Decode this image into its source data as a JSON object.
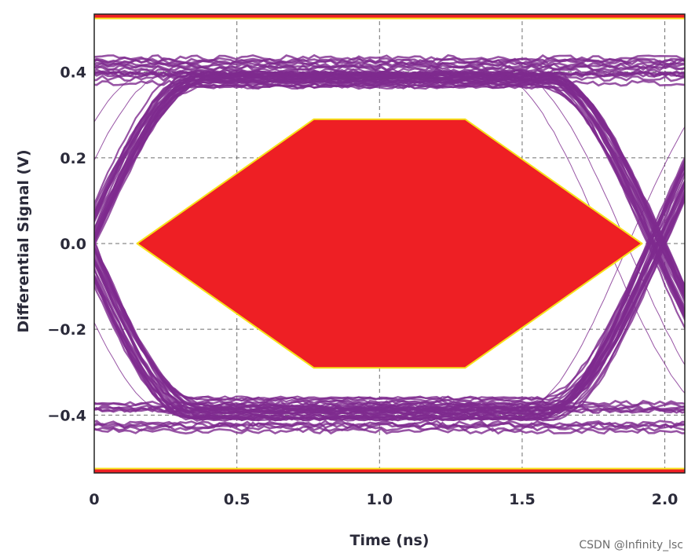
{
  "chart_data": {
    "type": "line",
    "title": "",
    "xlabel": "Time (ns)",
    "ylabel": "Differential Signal (V)",
    "xlim": [
      0,
      2.07
    ],
    "ylim": [
      -0.535,
      0.535
    ],
    "x_ticks": [
      {
        "value": 0,
        "label": "0"
      },
      {
        "value": 0.5,
        "label": "0.5"
      },
      {
        "value": 1.0,
        "label": "1.0"
      },
      {
        "value": 1.5,
        "label": "1.5"
      },
      {
        "value": 2.0,
        "label": "2.0"
      }
    ],
    "y_ticks": [
      {
        "value": 0.4,
        "label": "0.4"
      },
      {
        "value": 0.2,
        "label": "0.2"
      },
      {
        "value": 0.0,
        "label": "0.0"
      },
      {
        "value": -0.2,
        "label": "−0.2"
      },
      {
        "value": -0.4,
        "label": "−0.4"
      }
    ],
    "grid": true,
    "eye": {
      "unit_interval_ns": 2.0,
      "high_level": 0.405,
      "low_level": -0.405,
      "band_thickness": 0.05,
      "color": "#7e2b8e"
    },
    "mask": {
      "polygon": [
        [
          0.15,
          0.0
        ],
        [
          0.77,
          0.29
        ],
        [
          1.3,
          0.29
        ],
        [
          1.92,
          0.0
        ],
        [
          1.3,
          -0.29
        ],
        [
          0.77,
          -0.29
        ]
      ],
      "upper_limit": 0.525,
      "lower_limit": -0.525,
      "fill_color": "#ee1f24",
      "edge_color": "#f6e21a"
    }
  },
  "watermark": "CSDN @Infinity_lsc"
}
